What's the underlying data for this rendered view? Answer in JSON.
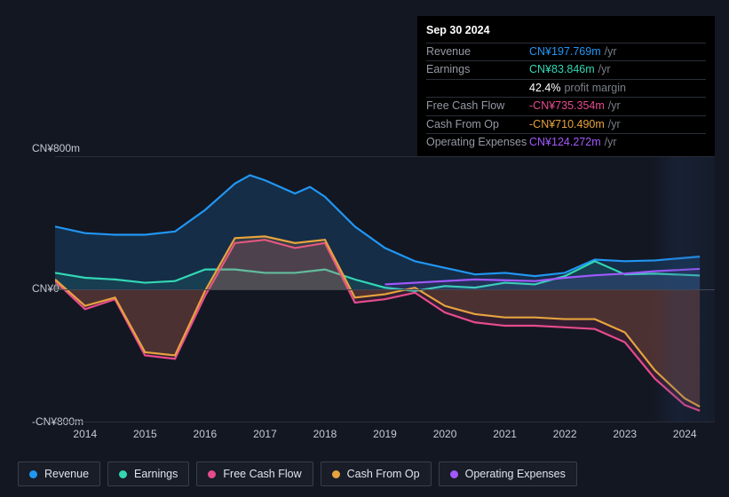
{
  "tooltip": {
    "date": "Sep 30 2024",
    "rows": [
      {
        "label": "Revenue",
        "value": "CN¥197.769m",
        "color": "#2196f3",
        "unit": "/yr"
      },
      {
        "label": "Earnings",
        "value": "CN¥83.846m",
        "color": "#32d7b4",
        "unit": "/yr"
      },
      {
        "label": "",
        "value": "42.4%",
        "color": "#ffffff",
        "unit": "profit margin"
      },
      {
        "label": "Free Cash Flow",
        "value": "-CN¥735.354m",
        "color": "#e64b8d",
        "unit": "/yr"
      },
      {
        "label": "Cash From Op",
        "value": "-CN¥710.490m",
        "color": "#e6a33e",
        "unit": "/yr"
      },
      {
        "label": "Operating Expenses",
        "value": "CN¥124.272m",
        "color": "#a259ff",
        "unit": "/yr"
      }
    ]
  },
  "yaxis": {
    "top": "CN¥800m",
    "mid": "CN¥0",
    "bottom": "-CN¥800m",
    "ylim": [
      -800,
      800
    ]
  },
  "xaxis": {
    "labels": [
      "2014",
      "2015",
      "2016",
      "2017",
      "2018",
      "2019",
      "2020",
      "2021",
      "2022",
      "2023",
      "2024"
    ],
    "xlim": [
      2014,
      2025
    ]
  },
  "series": [
    {
      "name": "Revenue",
      "color": "#2196f3",
      "fill": "rgba(33,150,243,0.18)",
      "data": [
        [
          2014.0,
          380
        ],
        [
          2014.5,
          340
        ],
        [
          2015.0,
          330
        ],
        [
          2015.5,
          330
        ],
        [
          2016.0,
          350
        ],
        [
          2016.5,
          480
        ],
        [
          2017.0,
          640
        ],
        [
          2017.25,
          690
        ],
        [
          2017.5,
          660
        ],
        [
          2018.0,
          580
        ],
        [
          2018.25,
          620
        ],
        [
          2018.5,
          560
        ],
        [
          2019.0,
          380
        ],
        [
          2019.5,
          250
        ],
        [
          2020.0,
          170
        ],
        [
          2020.5,
          130
        ],
        [
          2021.0,
          90
        ],
        [
          2021.5,
          100
        ],
        [
          2022.0,
          80
        ],
        [
          2022.5,
          100
        ],
        [
          2023.0,
          180
        ],
        [
          2023.5,
          170
        ],
        [
          2024.0,
          175
        ],
        [
          2024.75,
          198
        ]
      ]
    },
    {
      "name": "Earnings",
      "color": "#32d7b4",
      "fill": "rgba(50,215,180,0.10)",
      "data": [
        [
          2014.0,
          100
        ],
        [
          2014.5,
          70
        ],
        [
          2015.0,
          60
        ],
        [
          2015.5,
          40
        ],
        [
          2016.0,
          50
        ],
        [
          2016.5,
          120
        ],
        [
          2017.0,
          120
        ],
        [
          2017.5,
          100
        ],
        [
          2018.0,
          100
        ],
        [
          2018.5,
          120
        ],
        [
          2019.0,
          60
        ],
        [
          2019.5,
          10
        ],
        [
          2020.0,
          -10
        ],
        [
          2020.5,
          20
        ],
        [
          2021.0,
          10
        ],
        [
          2021.5,
          40
        ],
        [
          2022.0,
          30
        ],
        [
          2022.5,
          80
        ],
        [
          2023.0,
          170
        ],
        [
          2023.5,
          90
        ],
        [
          2024.0,
          95
        ],
        [
          2024.75,
          84
        ]
      ]
    },
    {
      "name": "Free Cash Flow",
      "color": "#e64b8d",
      "fill": "rgba(230,75,141,0.15)",
      "data": [
        [
          2014.0,
          50
        ],
        [
          2014.5,
          -120
        ],
        [
          2015.0,
          -60
        ],
        [
          2015.5,
          -400
        ],
        [
          2016.0,
          -420
        ],
        [
          2016.5,
          -40
        ],
        [
          2017.0,
          280
        ],
        [
          2017.5,
          300
        ],
        [
          2018.0,
          250
        ],
        [
          2018.5,
          280
        ],
        [
          2019.0,
          -80
        ],
        [
          2019.5,
          -60
        ],
        [
          2020.0,
          -20
        ],
        [
          2020.5,
          -140
        ],
        [
          2021.0,
          -200
        ],
        [
          2021.5,
          -220
        ],
        [
          2022.0,
          -220
        ],
        [
          2022.5,
          -230
        ],
        [
          2023.0,
          -240
        ],
        [
          2023.5,
          -320
        ],
        [
          2024.0,
          -540
        ],
        [
          2024.5,
          -700
        ],
        [
          2024.75,
          -735
        ]
      ]
    },
    {
      "name": "Cash From Op",
      "color": "#e6a33e",
      "fill": "rgba(230,163,62,0.15)",
      "data": [
        [
          2014.0,
          60
        ],
        [
          2014.5,
          -100
        ],
        [
          2015.0,
          -50
        ],
        [
          2015.5,
          -380
        ],
        [
          2016.0,
          -400
        ],
        [
          2016.5,
          -10
        ],
        [
          2017.0,
          310
        ],
        [
          2017.5,
          320
        ],
        [
          2018.0,
          280
        ],
        [
          2018.5,
          300
        ],
        [
          2019.0,
          -50
        ],
        [
          2019.5,
          -30
        ],
        [
          2020.0,
          10
        ],
        [
          2020.5,
          -100
        ],
        [
          2021.0,
          -150
        ],
        [
          2021.5,
          -170
        ],
        [
          2022.0,
          -170
        ],
        [
          2022.5,
          -180
        ],
        [
          2023.0,
          -180
        ],
        [
          2023.5,
          -260
        ],
        [
          2024.0,
          -490
        ],
        [
          2024.5,
          -660
        ],
        [
          2024.75,
          -710
        ]
      ]
    },
    {
      "name": "Operating Expenses",
      "color": "#a259ff",
      "fill": "rgba(162,89,255,0.10)",
      "data": [
        [
          2019.5,
          30
        ],
        [
          2020.0,
          40
        ],
        [
          2020.5,
          50
        ],
        [
          2021.0,
          60
        ],
        [
          2021.5,
          55
        ],
        [
          2022.0,
          50
        ],
        [
          2022.5,
          70
        ],
        [
          2023.0,
          85
        ],
        [
          2023.5,
          95
        ],
        [
          2024.0,
          110
        ],
        [
          2024.75,
          124
        ]
      ]
    }
  ]
}
